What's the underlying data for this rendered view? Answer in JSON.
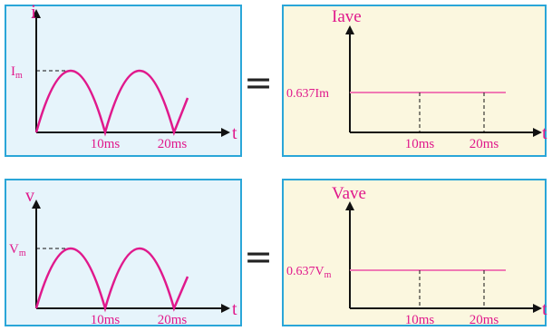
{
  "colors": {
    "left_panel_fill": "#e6f4fb",
    "right_panel_fill": "#fbf7df",
    "panel_border": "#2aa6d8",
    "waveform": "#e0198c",
    "average_line": "#f07ab4",
    "axis": "#111111",
    "text": "#e0198c"
  },
  "current_diagram": {
    "waveform_panel": {
      "y_axis_label": "i",
      "x_axis_label": "t",
      "peak_label_base": "I",
      "peak_label_sub": "m",
      "tick_labels": [
        "10ms",
        "20ms"
      ]
    },
    "equals": "=",
    "average_panel": {
      "y_axis_label": "Iave",
      "x_axis_label": "t",
      "level_label": "0.637Im",
      "tick_labels": [
        "10ms",
        "20ms"
      ]
    }
  },
  "voltage_diagram": {
    "waveform_panel": {
      "y_axis_label": "v",
      "x_axis_label": "t",
      "peak_label_base": "V",
      "peak_label_sub": "m",
      "tick_labels": [
        "10ms",
        "20ms"
      ]
    },
    "equals": "=",
    "average_panel": {
      "y_axis_label": "Vave",
      "x_axis_label": "t",
      "level_label_base": "0.637V",
      "level_label_sub": "m",
      "tick_labels": [
        "10ms",
        "20ms"
      ]
    }
  }
}
